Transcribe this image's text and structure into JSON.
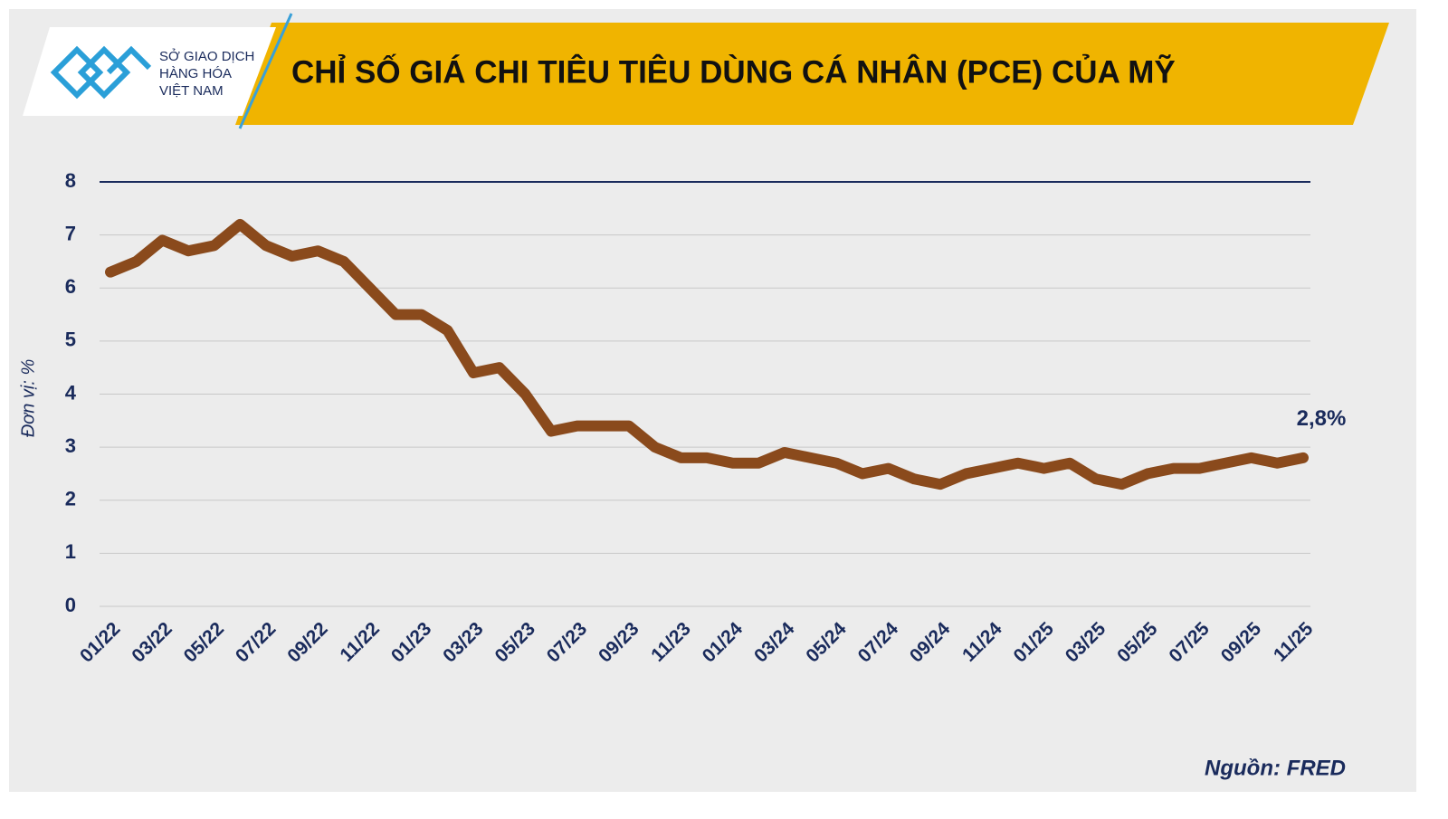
{
  "logo": {
    "lines": [
      "SỞ GIAO DỊCH",
      "HÀNG HÓA",
      "VIỆT NAM"
    ]
  },
  "chart_data": {
    "type": "line",
    "title": "CHỈ SỐ GIÁ CHI TIÊU TIÊU DÙNG CÁ NHÂN (PCE) CỦA MỸ",
    "y_label": "Đơn vị: %",
    "source": "Nguồn: FRED",
    "categories": [
      "01/22",
      null,
      "03/22",
      null,
      "05/22",
      null,
      "07/22",
      null,
      "09/22",
      null,
      "11/22",
      null,
      "01/23",
      null,
      "03/23",
      null,
      "05/23",
      null,
      "07/23",
      null,
      "09/23",
      null,
      "11/23",
      null,
      "01/24",
      null,
      "03/24",
      null,
      "05/24",
      null,
      "07/24",
      null,
      "09/24",
      null,
      "11/24",
      null,
      "01/25",
      null,
      "03/25",
      null,
      "05/25",
      null,
      "07/25",
      null,
      "09/25",
      null,
      "11/25"
    ],
    "series": [
      {
        "name": "PCE",
        "color": "#8a4a1c",
        "values": [
          6.3,
          6.5,
          6.9,
          6.7,
          6.8,
          7.2,
          6.8,
          6.6,
          6.7,
          6.5,
          6.0,
          5.5,
          5.5,
          5.2,
          4.4,
          4.5,
          4.0,
          3.3,
          3.4,
          3.4,
          3.4,
          3.0,
          2.8,
          2.8,
          2.7,
          2.7,
          2.9,
          2.8,
          2.7,
          2.5,
          2.6,
          2.4,
          2.3,
          2.5,
          2.6,
          2.7,
          2.6,
          2.7,
          2.4,
          2.3,
          2.5,
          2.6,
          2.6,
          2.7,
          2.8,
          2.7,
          2.8
        ],
        "value_labels": [
          null,
          null,
          null,
          null,
          null,
          null,
          null,
          null,
          null,
          null,
          null,
          null,
          null,
          null,
          null,
          null,
          null,
          null,
          null,
          null,
          null,
          null,
          null,
          null,
          null,
          null,
          null,
          null,
          null,
          null,
          null,
          null,
          null,
          null,
          null,
          null,
          null,
          null,
          null,
          null,
          null,
          null,
          null,
          null,
          null,
          null,
          "2,8%"
        ]
      }
    ],
    "ylim": [
      0,
      8
    ],
    "yticks": [
      0,
      1,
      2,
      3,
      4,
      5,
      6,
      7,
      8
    ],
    "grid": true
  }
}
